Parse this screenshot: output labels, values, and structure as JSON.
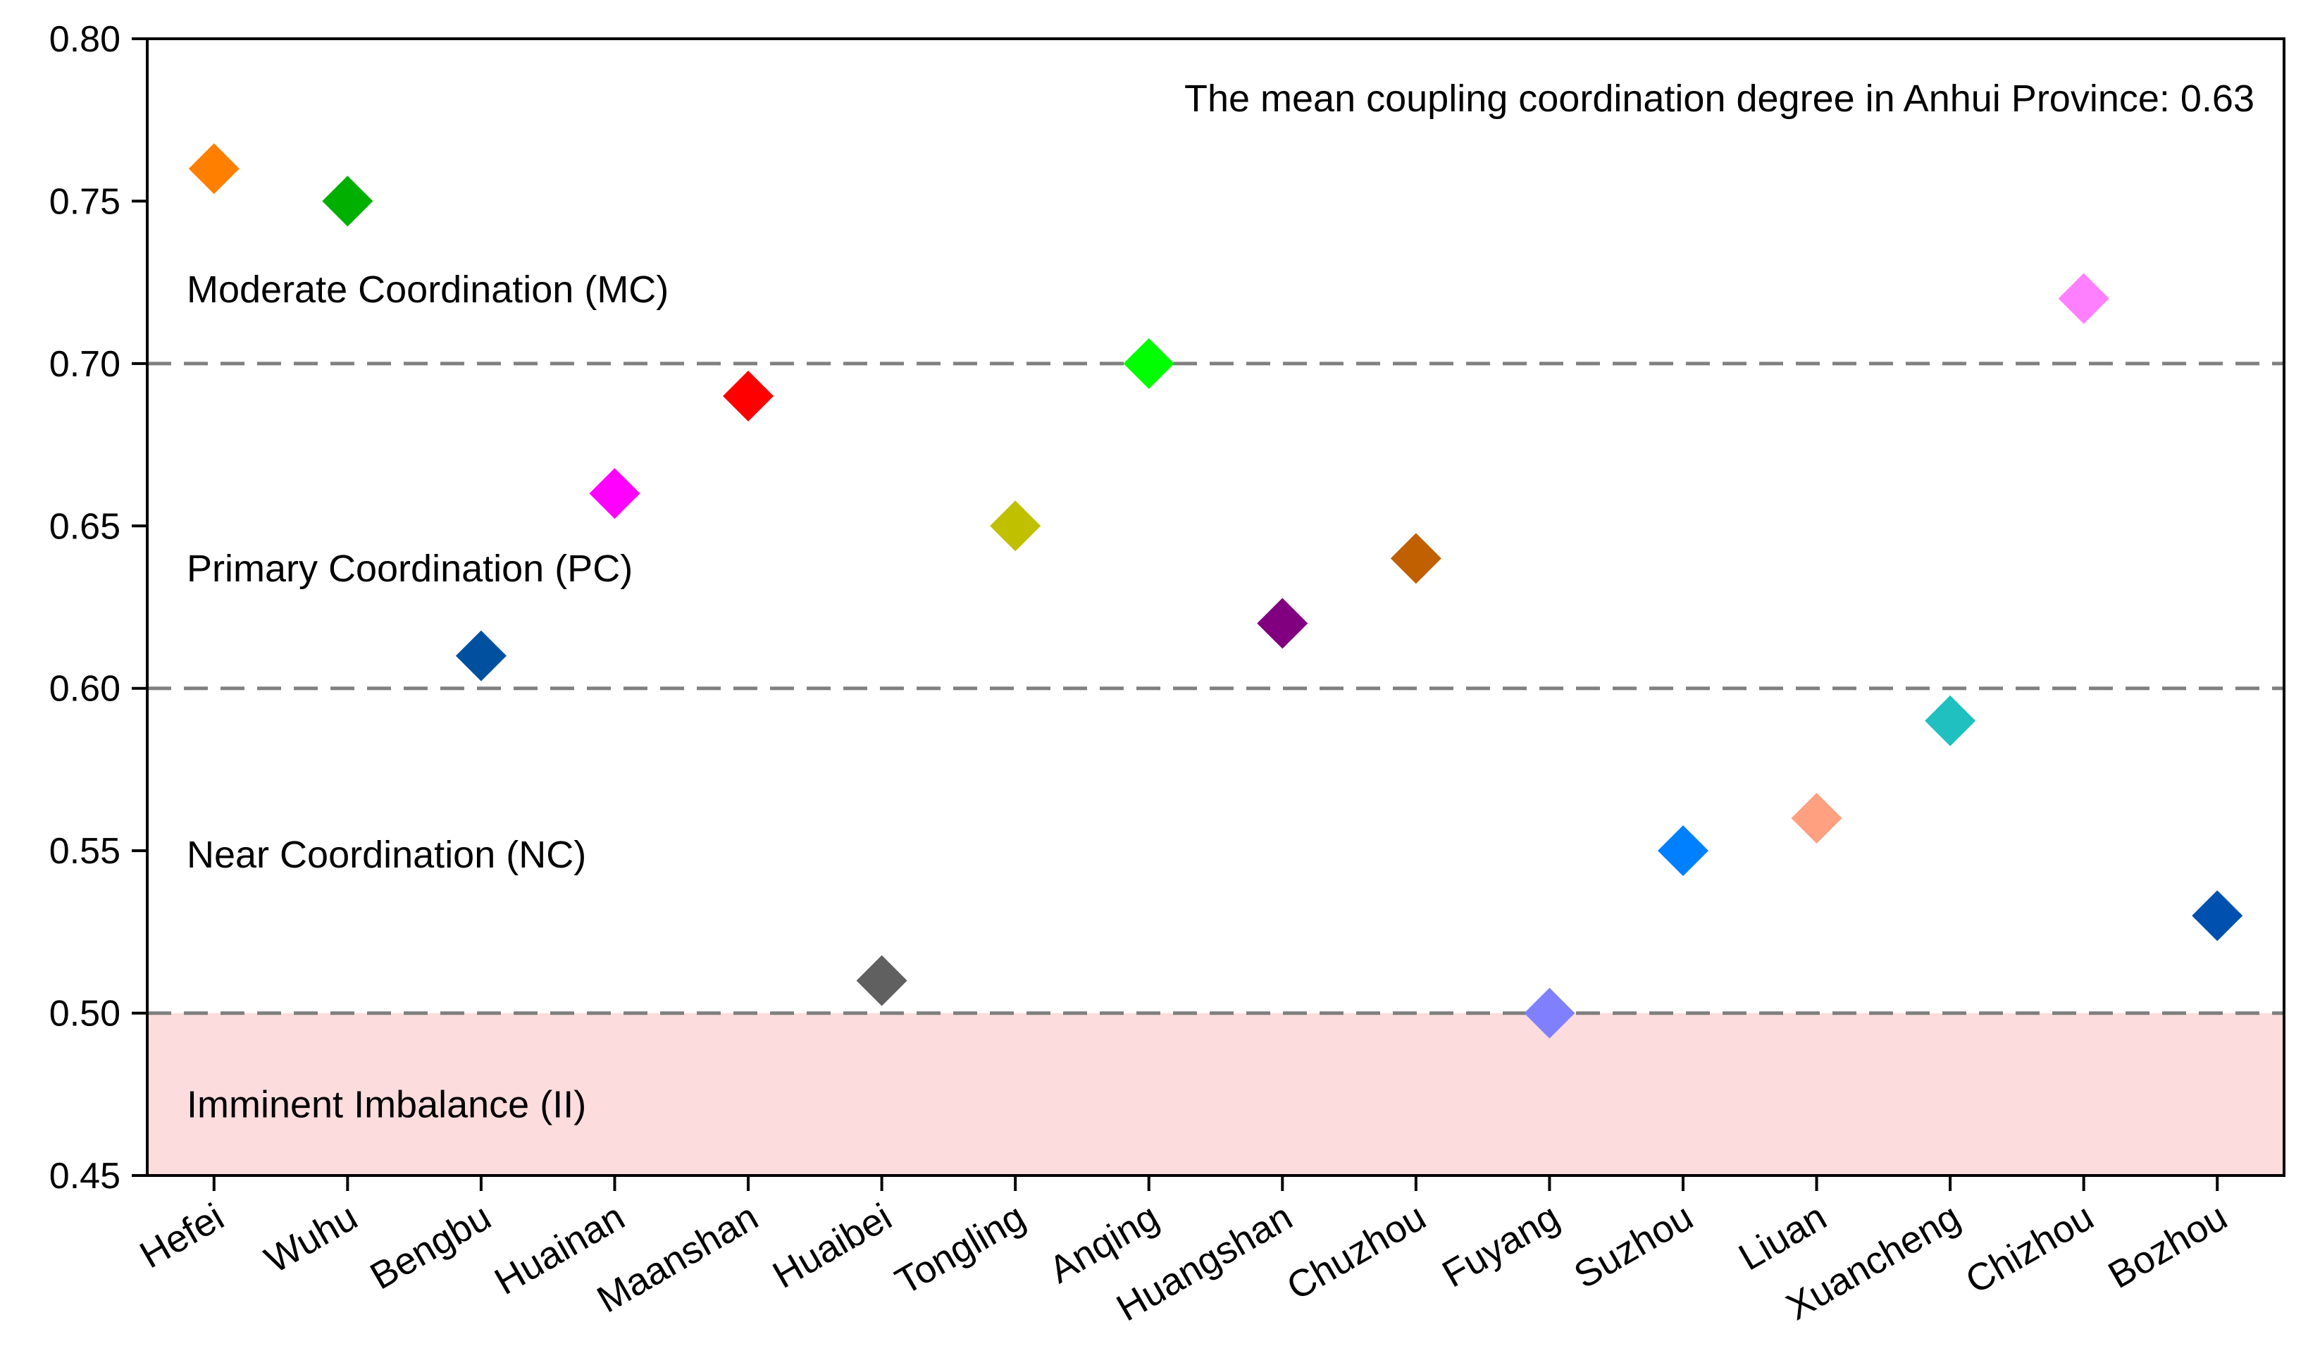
{
  "chart_data": {
    "type": "scatter",
    "marker": "diamond",
    "categories": [
      "Hefei",
      "Wuhu",
      "Bengbu",
      "Huainan",
      "Maanshan",
      "Huaibei",
      "Tongling",
      "Anqing",
      "Huangshan",
      "Chuzhou",
      "Fuyang",
      "Suzhou",
      "Liuan",
      "Xuancheng",
      "Chizhou",
      "Bozhou"
    ],
    "values": [
      0.76,
      0.75,
      0.61,
      0.66,
      0.69,
      0.51,
      0.65,
      0.7,
      0.62,
      0.64,
      0.5,
      0.55,
      0.56,
      0.59,
      0.72,
      0.53
    ],
    "colors": [
      "#FF8000",
      "#00B000",
      "#0050A0",
      "#FF00FF",
      "#FF0000",
      "#606060",
      "#C0C000",
      "#00FF00",
      "#800080",
      "#C06000",
      "#8080FF",
      "#0080FF",
      "#FFA080",
      "#20C0C0",
      "#FF80FF",
      "#0050B0"
    ],
    "ylim": [
      0.45,
      0.8
    ],
    "yticks": [
      0.45,
      0.5,
      0.55,
      0.6,
      0.65,
      0.7,
      0.75,
      0.8
    ],
    "ytick_labels": [
      "0.45",
      "0.50",
      "0.55",
      "0.60",
      "0.65",
      "0.70",
      "0.75",
      "0.80"
    ],
    "thresholds": [
      0.5,
      0.6,
      0.7
    ],
    "threshold_color": "#808080",
    "shaded_region": {
      "from": 0.45,
      "to": 0.5,
      "color": "#FCDCDC"
    },
    "bands": [
      {
        "label": "Moderate Coordination (MC)",
        "y": 0.723
      },
      {
        "label": "Primary Coordination (PC)",
        "y": 0.637
      },
      {
        "label": "Near Coordination (NC)",
        "y": 0.549
      },
      {
        "label": "Imminent Imbalance (II)",
        "y": 0.472
      }
    ],
    "annotation": "The mean coupling coordination degree in Anhui Province: 0.63",
    "mean_value": 0.63,
    "title": "",
    "xlabel": "",
    "ylabel": ""
  }
}
